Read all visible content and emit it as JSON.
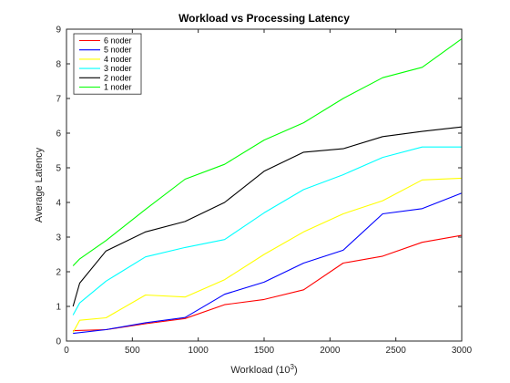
{
  "chart_data": {
    "type": "line",
    "title": "Workload vs Processing Latency",
    "xlabel": "Workload (10",
    "xlabel_sup": "3",
    "xlabel_tail": ")",
    "ylabel": "Average Latency",
    "xlim": [
      0,
      3000
    ],
    "ylim": [
      0,
      9
    ],
    "xticks": [
      0,
      500,
      1000,
      1500,
      2000,
      2500,
      3000
    ],
    "yticks": [
      0,
      1,
      2,
      3,
      4,
      5,
      6,
      7,
      8,
      9
    ],
    "grid": false,
    "legend_position": "top-left",
    "series": [
      {
        "name": "6 noder",
        "color": "#ff0000",
        "x": [
          50,
          300,
          600,
          900,
          1200,
          1500,
          1800,
          2100,
          2400,
          2700,
          3000
        ],
        "y": [
          0.3,
          0.33,
          0.5,
          0.65,
          1.05,
          1.2,
          1.48,
          2.25,
          2.45,
          2.85,
          3.05
        ]
      },
      {
        "name": "5 noder",
        "color": "#0000ff",
        "x": [
          50,
          300,
          600,
          900,
          1200,
          1500,
          1800,
          2100,
          2400,
          2700,
          3000
        ],
        "y": [
          0.22,
          0.33,
          0.53,
          0.68,
          1.35,
          1.7,
          2.25,
          2.62,
          3.67,
          3.82,
          4.27
        ]
      },
      {
        "name": "4 noder",
        "color": "#ffff00",
        "x": [
          50,
          100,
          300,
          600,
          900,
          1200,
          1500,
          1800,
          2100,
          2400,
          2700,
          3000
        ],
        "y": [
          0.25,
          0.6,
          0.67,
          1.33,
          1.27,
          1.77,
          2.5,
          3.15,
          3.67,
          4.05,
          4.65,
          4.7
        ]
      },
      {
        "name": "3 noder",
        "color": "#00ffff",
        "x": [
          50,
          100,
          300,
          600,
          900,
          1200,
          1500,
          1800,
          2100,
          2400,
          2700,
          3000
        ],
        "y": [
          0.75,
          1.1,
          1.73,
          2.43,
          2.7,
          2.93,
          3.7,
          4.37,
          4.8,
          5.3,
          5.6,
          5.6
        ]
      },
      {
        "name": "2 noder",
        "color": "#000000",
        "x": [
          50,
          100,
          300,
          600,
          900,
          1200,
          1500,
          1800,
          2100,
          2400,
          2700,
          3000
        ],
        "y": [
          1.0,
          1.67,
          2.6,
          3.15,
          3.45,
          4.0,
          4.9,
          5.45,
          5.55,
          5.9,
          6.05,
          6.18
        ]
      },
      {
        "name": "1 noder",
        "color": "#00ff00",
        "x": [
          50,
          100,
          300,
          600,
          900,
          1200,
          1500,
          1800,
          2100,
          2400,
          2700,
          3000
        ],
        "y": [
          2.17,
          2.37,
          2.9,
          3.8,
          4.67,
          5.1,
          5.8,
          6.3,
          7.0,
          7.6,
          7.9,
          8.72
        ]
      }
    ]
  }
}
